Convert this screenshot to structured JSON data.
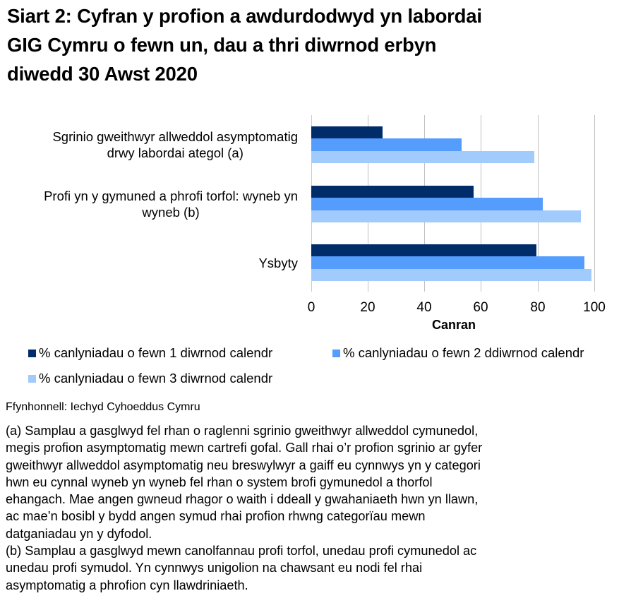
{
  "title": {
    "line1": "Siart 2: Cyfran y profion a awdurdodwyd yn labordai",
    "line2": "GIG Cymru o fewn un, dau a thri diwrnod erbyn",
    "line3": "diwedd 30 Awst 2020"
  },
  "colors": {
    "day1": "#002d6a",
    "day2": "#559dfd",
    "day3": "#a1cafd",
    "grid": "#c0c0c0"
  },
  "chart_data": {
    "type": "bar",
    "orientation": "horizontal",
    "title": "Siart 2: Cyfran y profion a awdurdodwyd yn labordai GIG Cymru o fewn un, dau a thri diwrnod erbyn diwedd 30 Awst 2020",
    "categories": [
      "Sgrinio gweithwyr allweddol asymptomatig drwy labordai ategol (a)",
      "Profi yn y gymuned a phrofi torfol: wyneb yn wyneb (b)",
      "Ysbyty"
    ],
    "category_label_lines": [
      [
        "Sgrinio gweithwyr allweddol asymptomatig",
        "drwy labordai ategol (a)"
      ],
      [
        "Profi yn y gymuned a phrofi torfol: wyneb yn",
        "wyneb (b)"
      ],
      [
        "Ysbyty"
      ]
    ],
    "series": [
      {
        "name": "% canlyniadau o fewn 1 diwrnod calendr",
        "values": [
          25.3,
          57.4,
          79.6
        ]
      },
      {
        "name": "% canlyniadau o fewn 2 ddiwrnod calendr",
        "values": [
          53.2,
          81.8,
          96.5
        ]
      },
      {
        "name": "% canlyniadau o fewn 3 diwrnod calendr",
        "values": [
          78.9,
          95.3,
          99.0
        ]
      }
    ],
    "xlabel": "Canran",
    "ylabel": "",
    "xlim": [
      0,
      100
    ],
    "xticks": [
      "0",
      "20",
      "40",
      "60",
      "80",
      "100"
    ],
    "grid": true,
    "legend_position": "bottom"
  },
  "source": "Ffynhonnell: Iechyd Cyhoeddus Cymru",
  "notes": {
    "a": [
      "(a) Samplau a gasglwyd fel rhan o raglenni sgrinio gweithwyr allweddol cymunedol,",
      "megis profion asymptomatig mewn cartrefi gofal. Gall rhai o’r profion sgrinio ar gyfer",
      "gweithwyr allweddol asymptomatig neu breswylwyr a gaiff eu cynnwys yn y categori",
      "hwn eu cynnal wyneb yn wyneb fel rhan o system brofi gymunedol a thorfol",
      "ehangach. Mae angen gwneud rhagor o waith i ddeall y gwahaniaeth hwn yn llawn,",
      "ac mae’n bosibl y bydd angen symud rhai profion rhwng categorïau mewn",
      "datganiadau yn y dyfodol."
    ],
    "b": [
      "(b) Samplau a gasglwyd mewn canolfannau profi torfol, unedau profi cymunedol ac",
      "unedau profi symudol. Yn cynnwys unigolion na chawsant eu nodi fel rhai",
      "asymptomatig a phrofion cyn llawdriniaeth."
    ]
  }
}
